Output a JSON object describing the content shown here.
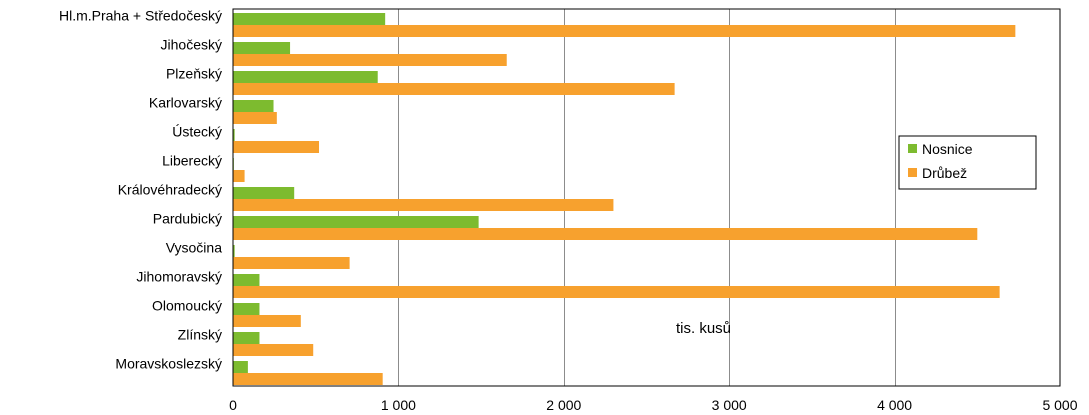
{
  "chart_data": {
    "type": "bar",
    "orientation": "horizontal",
    "categories": [
      "Hl.m.Praha + Středočeský",
      "Jihočeský",
      "Plzeňský",
      "Karlovarský",
      "Ústecký",
      "Liberecký",
      "Královéhradecký",
      "Pardubický",
      "Vysočina",
      "Jihomoravský",
      "Olomoucký",
      "Zlínský",
      "Moravskoslezský"
    ],
    "series": [
      {
        "name": "Nosnice",
        "color": "#7dbb2f",
        "values": [
          920,
          345,
          875,
          245,
          10,
          5,
          370,
          1485,
          10,
          160,
          160,
          160,
          90
        ]
      },
      {
        "name": "Drůbež",
        "color": "#f7a12e",
        "values": [
          4730,
          1655,
          2670,
          265,
          520,
          70,
          2300,
          4500,
          705,
          4635,
          410,
          485,
          905
        ]
      }
    ],
    "xlim": [
      0,
      5000
    ],
    "xticks": [
      0,
      1000,
      2000,
      3000,
      4000,
      5000
    ],
    "xtick_labels": [
      "0",
      "1 000",
      "2 000",
      "3 000",
      "4 000",
      "5 000"
    ],
    "grid": "vertical",
    "legend_position": "right",
    "annotation": "tis. kusů"
  }
}
